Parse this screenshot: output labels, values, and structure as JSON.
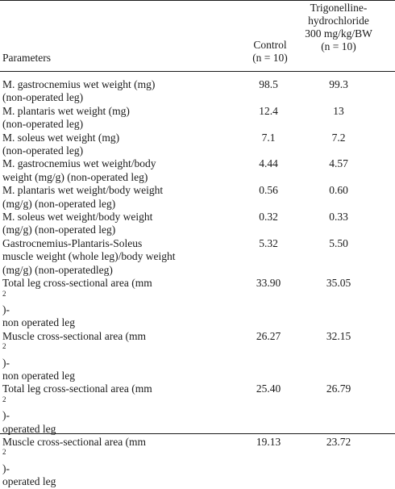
{
  "header": {
    "parameters": "Parameters",
    "control_line1": "Control",
    "control_line2": "(n = 10)",
    "treat_line1": "Trigonelline-",
    "treat_line2": "hydrochloride",
    "treat_line3": "300 mg/kg/BW",
    "treat_line4": "(n = 10)"
  },
  "rows": [
    {
      "l1": "M. gastrocnemius wet weight (mg)",
      "l2": "(non-operated leg)",
      "control": "98.5",
      "treated": "99.3"
    },
    {
      "l1": "M. plantaris wet weight (mg)",
      "l2": "(non-operated leg)",
      "control": "12.4",
      "treated": "13"
    },
    {
      "l1": "M. soleus wet weight (mg)",
      "l2": "(non-operated leg)",
      "control": "7.1",
      "treated": "7.2"
    },
    {
      "l1": "M. gastrocnemius wet weight/body",
      "l2": "weight (mg/g) (non-operated leg)",
      "control": "4.44",
      "treated": "4.57"
    },
    {
      "l1": "M. plantaris wet weight/body weight",
      "l2": "(mg/g) (non-operated leg)",
      "control": "0.56",
      "treated": "0.60"
    },
    {
      "l1": "M. soleus wet weight/body weight",
      "l2": "(mg/g) (non-operated leg)",
      "control": "0.32",
      "treated": "0.33"
    },
    {
      "l1": "Gastrocnemius-Plantaris-Soleus",
      "l2": "muscle weight (whole leg)/body weight",
      "l3": "(mg/g) (non-operatedleg)",
      "control": "5.32",
      "treated": "5.50"
    },
    {
      "l1a": "Total leg cross-sectional area (mm",
      "sup": "2",
      "l1b": ")-",
      "l2": "non operated leg",
      "control": "33.90",
      "treated": "35.05"
    },
    {
      "l1a": "Muscle cross-sectional area (mm",
      "sup": "2",
      "l1b": ")-",
      "l2": "non operated leg",
      "control": "26.27",
      "treated": "32.15"
    },
    {
      "l1a": "Total leg cross-sectional area (mm",
      "sup": "2",
      "l1b": ")-",
      "l2": "operated leg",
      "control": "25.40",
      "treated": "26.79"
    },
    {
      "l1a": "Muscle cross-sectional area (mm",
      "sup": "2",
      "l1b": ")-",
      "l2": "operated leg",
      "control": "19.13",
      "treated": "23.72"
    }
  ]
}
